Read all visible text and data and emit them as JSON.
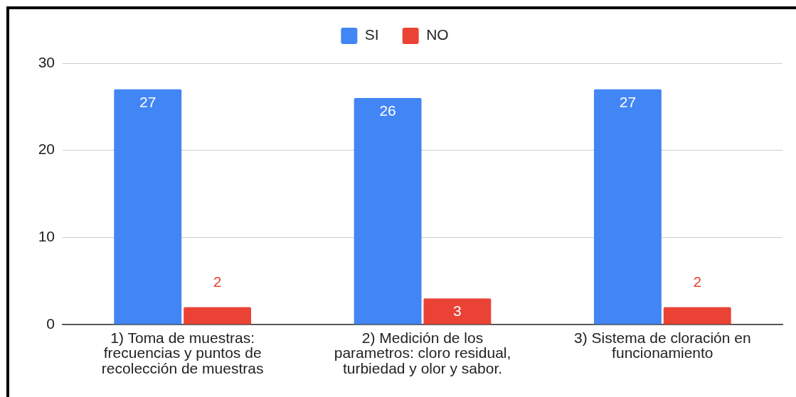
{
  "chart_data": {
    "type": "bar",
    "categories": [
      "1) Toma de muestras: frecuencias y puntos de recolección de muestras",
      "2) Medición de los parametros: cloro residual, turbiedad y olor y sabor.",
      "3) Sistema de cloración en funcionamiento"
    ],
    "series": [
      {
        "name": "SI",
        "color": "#4285f4",
        "values": [
          27,
          26,
          27
        ]
      },
      {
        "name": "NO",
        "color": "#ea4335",
        "values": [
          2,
          3,
          2
        ]
      }
    ],
    "ylim": [
      0,
      30
    ],
    "yticks": [
      0,
      10,
      20,
      30
    ],
    "grid": "y",
    "legend": "top",
    "data_labels": true
  }
}
